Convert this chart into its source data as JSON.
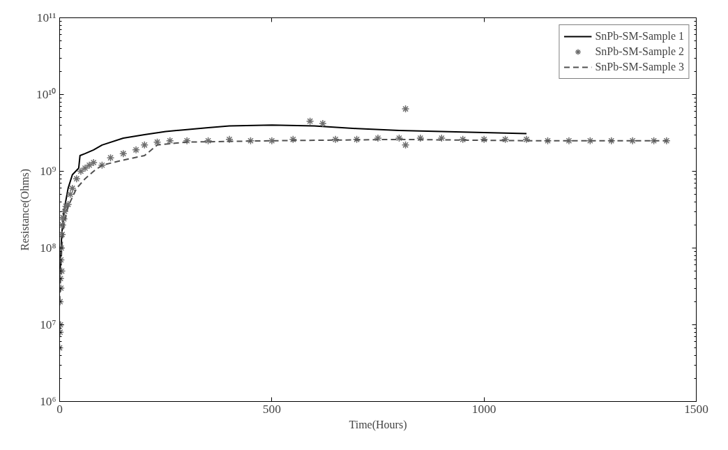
{
  "chart_data": {
    "type": "line",
    "xlabel": "Time(Hours)",
    "ylabel": "Resistance(Ohms)",
    "log": "y",
    "xlim": [
      0,
      1500
    ],
    "ylim": [
      1000000,
      100000000000
    ],
    "xticks": [
      0,
      500,
      1000,
      1500
    ],
    "yticks": [
      {
        "value": 1000000,
        "label": "10⁶"
      },
      {
        "value": 10000000,
        "label": "10⁷"
      },
      {
        "value": 100000000,
        "label": "10⁸"
      },
      {
        "value": 1000000000,
        "label": "10⁹"
      },
      {
        "value": 10000000000,
        "label": "10¹⁰"
      },
      {
        "value": 100000000000,
        "label": "10¹¹"
      }
    ],
    "legend": "top right",
    "grid": false,
    "series": [
      {
        "name": "SnPb-SM-Sample 1",
        "color": "#000000",
        "line_style": "solid",
        "x": [
          1,
          5,
          10,
          20,
          30,
          45,
          48,
          60,
          80,
          100,
          150,
          200,
          250,
          300,
          350,
          400,
          500,
          600,
          700,
          800,
          900,
          1000,
          1100
        ],
        "values": [
          50000000,
          150000000,
          300000000,
          600000000,
          900000000,
          1100000000,
          1600000000,
          1700000000,
          1900000000,
          2200000000,
          2700000000,
          3000000000,
          3300000000,
          3500000000,
          3700000000,
          3900000000,
          4000000000,
          3900000000,
          3600000000,
          3400000000,
          3300000000,
          3200000000,
          3100000000
        ]
      },
      {
        "name": "SnPb-SM-Sample 2",
        "type": "scatter",
        "marker": "cross",
        "color": "#6e6e6e",
        "x": [
          0,
          1,
          1,
          2,
          2,
          3,
          3,
          4,
          5,
          6,
          7,
          8,
          10,
          12,
          15,
          20,
          25,
          30,
          40,
          50,
          60,
          70,
          80,
          100,
          120,
          150,
          180,
          200,
          230,
          260,
          300,
          350,
          400,
          450,
          500,
          550,
          590,
          620,
          650,
          700,
          750,
          800,
          815,
          815,
          850,
          900,
          950,
          1000,
          1050,
          1100,
          1150,
          1200,
          1250,
          1300,
          1350,
          1400,
          1430
        ],
        "values": [
          5000000,
          8000000,
          20000000,
          10000000,
          40000000,
          30000000,
          70000000,
          100000000,
          50000000,
          150000000,
          200000000,
          250000000,
          240000000,
          300000000,
          350000000,
          370000000,
          500000000,
          600000000,
          800000000,
          1000000000,
          1100000000,
          1200000000,
          1300000000,
          1200000000,
          1500000000,
          1700000000,
          1900000000,
          2200000000,
          2400000000,
          2500000000,
          2500000000,
          2500000000,
          2600000000,
          2500000000,
          2500000000,
          2600000000,
          4500000000,
          4200000000,
          2600000000,
          2600000000,
          2700000000,
          2700000000,
          6500000000,
          2200000000,
          2700000000,
          2700000000,
          2600000000,
          2600000000,
          2600000000,
          2600000000,
          2500000000,
          2500000000,
          2500000000,
          2500000000,
          2500000000,
          2500000000,
          2500000000
        ]
      },
      {
        "name": "SnPb-SM-Sample 3",
        "color": "#505050",
        "line_style": "dashed",
        "x": [
          0,
          5,
          10,
          20,
          40,
          60,
          80,
          100,
          150,
          200,
          230,
          300,
          500,
          800,
          1100,
          1430
        ],
        "values": [
          20000000,
          100000000,
          200000000,
          350000000,
          600000000,
          800000000,
          1000000000,
          1200000000,
          1400000000,
          1600000000,
          2200000000,
          2400000000,
          2500000000,
          2600000000,
          2500000000,
          2500000000
        ]
      }
    ]
  }
}
